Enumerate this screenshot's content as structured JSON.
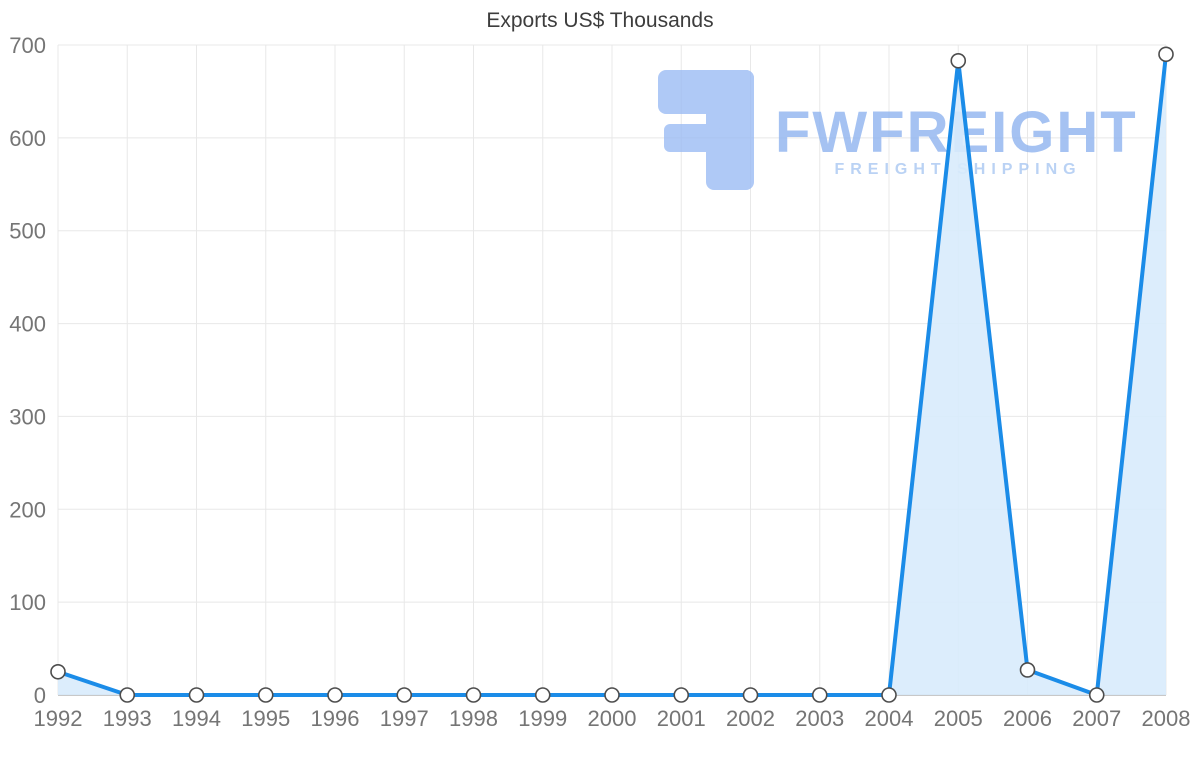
{
  "chart_data": {
    "type": "area",
    "title": "Exports US$ Thousands",
    "categories": [
      "1992",
      "1993",
      "1994",
      "1995",
      "1996",
      "1997",
      "1998",
      "1999",
      "2000",
      "2001",
      "2002",
      "2003",
      "2004",
      "2005",
      "2006",
      "2007",
      "2008"
    ],
    "values": [
      25,
      0,
      0,
      0,
      0,
      0,
      0,
      0,
      0,
      0,
      0,
      0,
      0,
      683,
      27,
      0,
      690
    ],
    "xlabel": "",
    "ylabel": "",
    "ylim": [
      0,
      700
    ],
    "y_ticks": [
      0,
      100,
      200,
      300,
      400,
      500,
      600,
      700
    ],
    "grid": true,
    "legend": "none",
    "colors": {
      "line": "#1b8ce8",
      "area_fill": "#d8ebfc",
      "marker_fill": "#ffffff",
      "marker_stroke": "#4d4d4d",
      "grid": "#e8e8e8",
      "axis": "#b5b5b5",
      "tick_label": "#757575",
      "title": "#3d3d3d"
    }
  },
  "watermark": {
    "brand": "FWFREIGHT",
    "tagline": "FREIGHT SHIPPING",
    "brand_color": "#8fb4f0",
    "tagline_color": "#a9c8f2",
    "logo_color": "#9cbcf4"
  }
}
